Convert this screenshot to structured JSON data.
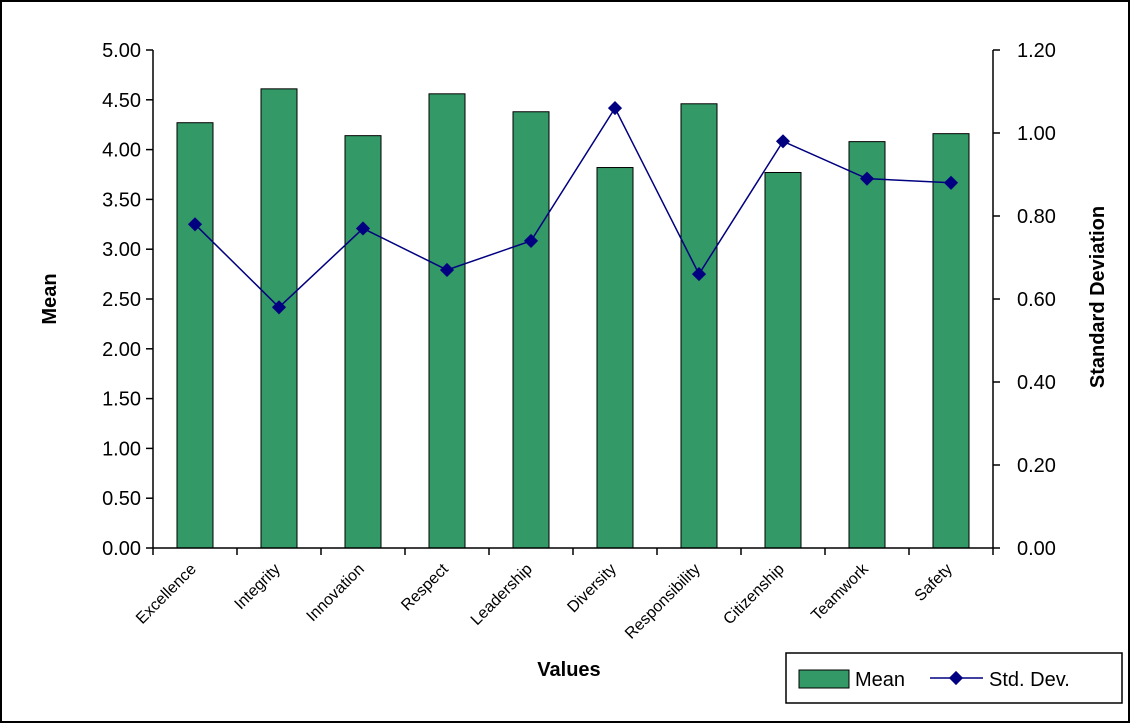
{
  "chart_data": {
    "type": "bar",
    "title": "",
    "xlabel": "Values",
    "ylabel": "Mean",
    "y2label": "Standard Deviation",
    "categories": [
      "Excellence",
      "Integrity",
      "Innovation",
      "Respect",
      "Leadership",
      "Diversity",
      "Responsibility",
      "Citizenship",
      "Teamwork",
      "Safety"
    ],
    "series": [
      {
        "name": "Mean",
        "type": "bar",
        "axis": "left",
        "color": "#339966",
        "values": [
          4.27,
          4.61,
          4.14,
          4.56,
          4.38,
          3.82,
          4.46,
          3.77,
          4.08,
          4.16
        ]
      },
      {
        "name": "Std. Dev.",
        "type": "line",
        "axis": "right",
        "color": "#000080",
        "values": [
          0.78,
          0.58,
          0.77,
          0.67,
          0.74,
          1.06,
          0.66,
          0.98,
          0.89,
          0.88
        ]
      }
    ],
    "ylim": [
      0,
      5
    ],
    "ytick_step": 0.5,
    "ytick_labels": [
      "0.00",
      "0.50",
      "1.00",
      "1.50",
      "2.00",
      "2.50",
      "3.00",
      "3.50",
      "4.00",
      "4.50",
      "5.00"
    ],
    "y2lim": [
      0,
      1.2
    ],
    "y2tick_step": 0.2,
    "y2tick_labels": [
      "0.00",
      "0.20",
      "0.40",
      "0.60",
      "0.80",
      "1.00",
      "1.20"
    ],
    "grid": false,
    "legend": "bottom-right"
  }
}
